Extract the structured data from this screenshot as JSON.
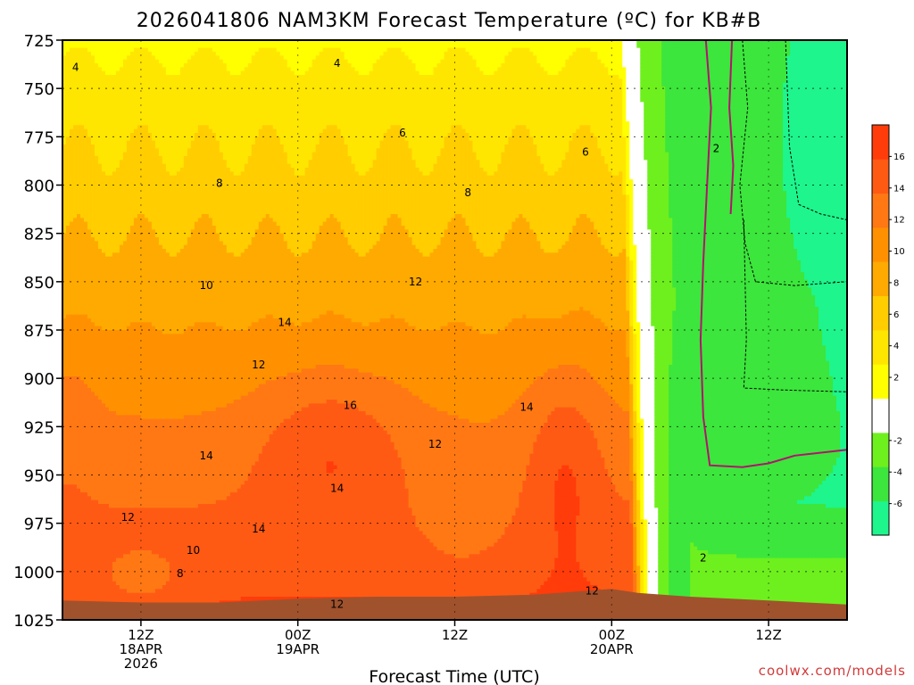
{
  "chart_data": {
    "type": "heatmap",
    "title": "2026041806 NAM3KM Forecast Temperature (ºC) for KB#B",
    "xlabel": "Forecast Time (UTC)",
    "ylabel": "",
    "credit": "coolwx.com/models",
    "y_axis": {
      "ticks": [
        725,
        750,
        775,
        800,
        825,
        850,
        875,
        900,
        925,
        950,
        975,
        1000,
        1025
      ],
      "range": [
        725,
        1025
      ],
      "inverted": true
    },
    "x_axis": {
      "range_hours": [
        0,
        60
      ],
      "ticks": [
        {
          "hour": 6,
          "lines": [
            "12Z",
            "18APR",
            "2026"
          ]
        },
        {
          "hour": 18,
          "lines": [
            "00Z",
            "19APR"
          ]
        },
        {
          "hour": 30,
          "lines": [
            "12Z"
          ]
        },
        {
          "hour": 42,
          "lines": [
            "00Z",
            "20APR"
          ]
        },
        {
          "hour": 54,
          "lines": [
            "12Z"
          ]
        }
      ]
    },
    "grid": true,
    "legend": "right",
    "colorbar": {
      "bins": [
        {
          "min": -8,
          "max": -6,
          "color": "#1ef58c"
        },
        {
          "min": -6,
          "max": -4,
          "color": "#3ce63c"
        },
        {
          "min": -4,
          "max": -2,
          "color": "#6ef01e"
        },
        {
          "min": -2,
          "max": 2,
          "color": "#ffffff"
        },
        {
          "min": 2,
          "max": 4,
          "color": "#ffff00"
        },
        {
          "min": 4,
          "max": 6,
          "color": "#ffe600"
        },
        {
          "min": 6,
          "max": 8,
          "color": "#ffcd00"
        },
        {
          "min": 8,
          "max": 10,
          "color": "#ffaa00"
        },
        {
          "min": 10,
          "max": 12,
          "color": "#ff9100"
        },
        {
          "min": 12,
          "max": 14,
          "color": "#ff7814"
        },
        {
          "min": 14,
          "max": 16,
          "color": "#ff5a14"
        },
        {
          "min": 16,
          "max": 18,
          "color": "#ff3c0a"
        }
      ],
      "labels": [
        -6,
        -4,
        -2,
        2,
        4,
        6,
        8,
        10,
        12,
        14,
        16
      ]
    },
    "ground_color": "#a0522d",
    "contour_labels": [
      {
        "value": "4",
        "hour": 1,
        "p": 739
      },
      {
        "value": "4",
        "hour": 21,
        "p": 737
      },
      {
        "value": "6",
        "hour": 26,
        "p": 773
      },
      {
        "value": "6",
        "hour": 40,
        "p": 783
      },
      {
        "value": "8",
        "hour": 12,
        "p": 799
      },
      {
        "value": "8",
        "hour": 31,
        "p": 804
      },
      {
        "value": "10",
        "hour": 11,
        "p": 852
      },
      {
        "value": "12",
        "hour": 27,
        "p": 850
      },
      {
        "value": "14",
        "hour": 17,
        "p": 871
      },
      {
        "value": "12",
        "hour": 15,
        "p": 893
      },
      {
        "value": "16",
        "hour": 22,
        "p": 914
      },
      {
        "value": "14",
        "hour": 35.5,
        "p": 915
      },
      {
        "value": "12",
        "hour": 28.5,
        "p": 934
      },
      {
        "value": "14",
        "hour": 11,
        "p": 940
      },
      {
        "value": "14",
        "hour": 21,
        "p": 957
      },
      {
        "value": "12",
        "hour": 5,
        "p": 972
      },
      {
        "value": "10",
        "hour": 10,
        "p": 989
      },
      {
        "value": "14",
        "hour": 15,
        "p": 978
      },
      {
        "value": "8",
        "hour": 9,
        "p": 1001
      },
      {
        "value": "12",
        "hour": 21,
        "p": 1017
      },
      {
        "value": "12",
        "hour": 40.5,
        "p": 1010
      },
      {
        "value": "2",
        "hour": 50,
        "p": 781
      },
      {
        "value": "2",
        "hour": 49,
        "p": 993
      }
    ],
    "zero_contour": [
      [
        49.2,
        725
      ],
      [
        49.6,
        760
      ],
      [
        49.3,
        800
      ],
      [
        49.0,
        840
      ],
      [
        48.8,
        880
      ],
      [
        49.0,
        920
      ],
      [
        49.5,
        945
      ],
      [
        52,
        946
      ],
      [
        54,
        944
      ],
      [
        56,
        940
      ],
      [
        60,
        937
      ]
    ],
    "zero_contour_2": [
      [
        51.2,
        725
      ],
      [
        51.0,
        760
      ],
      [
        51.3,
        790
      ],
      [
        51.1,
        815
      ]
    ],
    "dashed_contours": [
      [
        [
          52,
          725
        ],
        [
          52.4,
          760
        ],
        [
          51.8,
          800
        ],
        [
          52.2,
          830
        ],
        [
          53,
          850
        ],
        [
          56,
          852
        ],
        [
          60,
          850
        ]
      ],
      [
        [
          55.3,
          725
        ],
        [
          55.6,
          780
        ],
        [
          56.3,
          810
        ],
        [
          58,
          815
        ],
        [
          60,
          818
        ]
      ],
      [
        [
          52.1,
          818
        ],
        [
          52.3,
          880
        ],
        [
          52.1,
          905
        ],
        [
          55,
          906
        ],
        [
          60,
          907
        ]
      ]
    ],
    "ground_profile": [
      [
        0,
        1015
      ],
      [
        6,
        1016
      ],
      [
        12,
        1016
      ],
      [
        18,
        1014
      ],
      [
        24,
        1013
      ],
      [
        30,
        1013
      ],
      [
        36,
        1012
      ],
      [
        42,
        1009
      ],
      [
        44,
        1011
      ],
      [
        48,
        1013
      ],
      [
        54,
        1015
      ],
      [
        60,
        1017
      ]
    ]
  }
}
